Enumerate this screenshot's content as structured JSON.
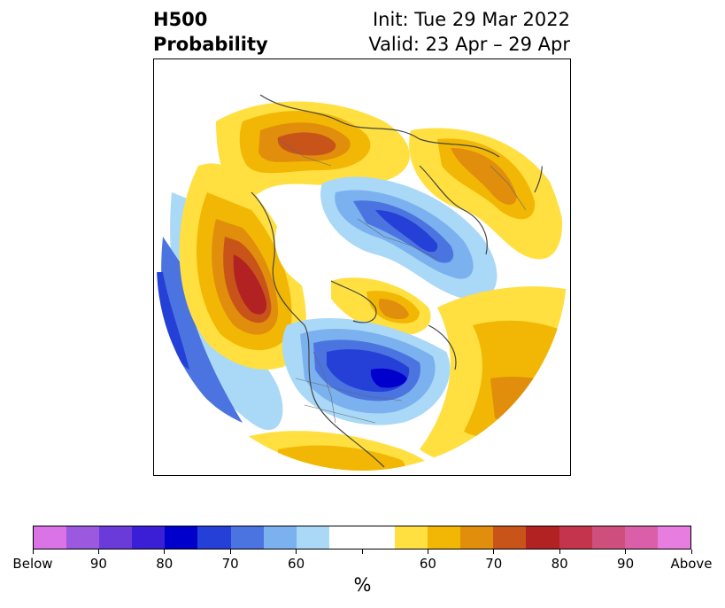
{
  "title": {
    "left_line1": "H500",
    "left_line2": "Probability",
    "right_line1": "Init: Tue 29 Mar 2022",
    "right_line2": "Valid: 23 Apr – 29 Apr"
  },
  "colorbar": {
    "colors": [
      "#d973e6",
      "#9b59e0",
      "#6a3bd9",
      "#3a1fd6",
      "#0000cc",
      "#2440d6",
      "#4b74e0",
      "#7ab1ee",
      "#aad8f7",
      "#ffffff",
      "#ffffff",
      "#ffe040",
      "#f2b705",
      "#e08e0b",
      "#c8541a",
      "#b22222",
      "#c4354d",
      "#cf4f7c",
      "#db5fa8",
      "#e87de0"
    ],
    "tick_labels": [
      "Below",
      "90",
      "80",
      "70",
      "60",
      "",
      "60",
      "70",
      "80",
      "90",
      "Above"
    ],
    "units": "%"
  }
}
